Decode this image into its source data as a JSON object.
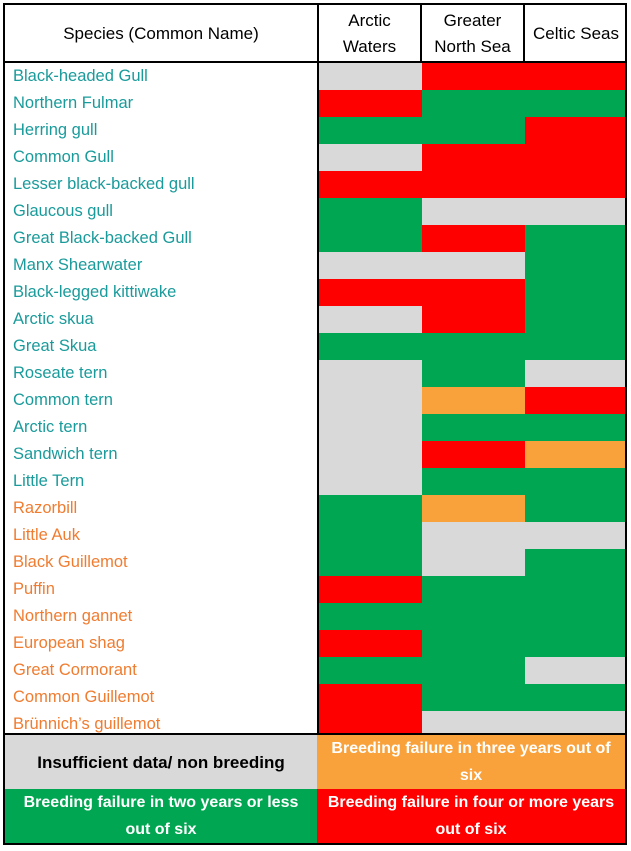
{
  "colors": {
    "grey": "#d9d9d9",
    "red": "#ff0000",
    "green": "#00a651",
    "orange": "#f9a13a",
    "teal_text": "#1a9b9b",
    "orange_text": "#f07c30"
  },
  "header": {
    "species": "Species (Common Name)",
    "arctic": "Arctic Waters",
    "north_sea": "Greater North Sea",
    "celtic": "Celtic Seas"
  },
  "chart_data": {
    "type": "table",
    "columns": [
      "Arctic Waters",
      "Greater North Sea",
      "Celtic Seas"
    ],
    "rows": [
      {
        "species": "Black-headed Gull",
        "group": "teal",
        "values": [
          "grey",
          "red",
          "red"
        ]
      },
      {
        "species": "Northern Fulmar",
        "group": "teal",
        "values": [
          "red",
          "green",
          "green"
        ]
      },
      {
        "species": "Herring gull",
        "group": "teal",
        "values": [
          "green",
          "green",
          "red"
        ]
      },
      {
        "species": "Common Gull",
        "group": "teal",
        "values": [
          "grey",
          "red",
          "red"
        ]
      },
      {
        "species": "Lesser black-backed gull",
        "group": "teal",
        "values": [
          "red",
          "red",
          "red"
        ]
      },
      {
        "species": "Glaucous gull",
        "group": "teal",
        "values": [
          "green",
          "grey",
          "grey"
        ]
      },
      {
        "species": "Great Black-backed Gull",
        "group": "teal",
        "values": [
          "green",
          "red",
          "green"
        ]
      },
      {
        "species": "Manx Shearwater",
        "group": "teal",
        "values": [
          "grey",
          "grey",
          "green"
        ]
      },
      {
        "species": "Black-legged kittiwake",
        "group": "teal",
        "values": [
          "red",
          "red",
          "green"
        ]
      },
      {
        "species": "Arctic skua",
        "group": "teal",
        "values": [
          "grey",
          "red",
          "green"
        ]
      },
      {
        "species": "Great Skua",
        "group": "teal",
        "values": [
          "green",
          "green",
          "green"
        ]
      },
      {
        "species": "Roseate tern",
        "group": "teal",
        "values": [
          "grey",
          "green",
          "grey"
        ]
      },
      {
        "species": "Common tern",
        "group": "teal",
        "values": [
          "grey",
          "orange",
          "red"
        ]
      },
      {
        "species": "Arctic tern",
        "group": "teal",
        "values": [
          "grey",
          "green",
          "green"
        ]
      },
      {
        "species": "Sandwich tern",
        "group": "teal",
        "values": [
          "grey",
          "red",
          "orange"
        ]
      },
      {
        "species": "Little Tern",
        "group": "teal",
        "values": [
          "grey",
          "green",
          "green"
        ]
      },
      {
        "species": "Razorbill",
        "group": "orange",
        "values": [
          "green",
          "orange",
          "green"
        ]
      },
      {
        "species": "Little Auk",
        "group": "orange",
        "values": [
          "green",
          "grey",
          "grey"
        ]
      },
      {
        "species": "Black Guillemot",
        "group": "orange",
        "values": [
          "green",
          "grey",
          "green"
        ]
      },
      {
        "species": "Puffin",
        "group": "orange",
        "values": [
          "red",
          "green",
          "green"
        ]
      },
      {
        "species": "Northern gannet",
        "group": "orange",
        "values": [
          "green",
          "green",
          "green"
        ]
      },
      {
        "species": "European shag",
        "group": "orange",
        "values": [
          "red",
          "green",
          "green"
        ]
      },
      {
        "species": "Great Cormorant",
        "group": "orange",
        "values": [
          "green",
          "green",
          "grey"
        ]
      },
      {
        "species": "Common Guillemot",
        "group": "orange",
        "values": [
          "red",
          "green",
          "green"
        ]
      },
      {
        "species": "Brünnich’s guillemot",
        "group": "orange",
        "values": [
          "red",
          "grey",
          "grey"
        ]
      }
    ]
  },
  "legend": {
    "grey": "Insufficient data/ non breeding",
    "orange": "Breeding failure in three years out of six",
    "green": "Breeding failure in two years or less out of six",
    "red": "Breeding failure in four or more years out of six"
  }
}
